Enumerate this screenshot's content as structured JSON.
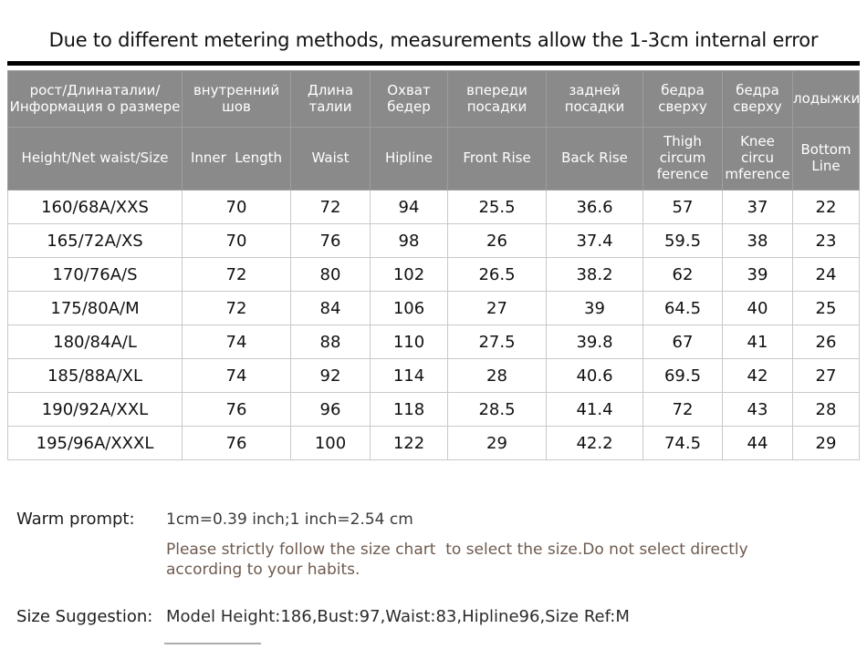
{
  "title": "Due to different metering methods, measurements allow the 1-3cm internal error",
  "chart_data": {
    "type": "table",
    "columns_ru": [
      "рост/Длинаталии/\nИнформация о размере",
      "внутренний\nшов",
      "Длина\nталии",
      "Охват\nбедер",
      "впереди\nпосадки",
      "задней\nпосадки",
      "бедра\nсверху",
      "бедра\nсверху",
      "лодыжки"
    ],
    "columns_en": [
      "Height/Net waist/Size",
      "Inner  Length",
      "Waist",
      "Hipline",
      "Front Rise",
      "Back Rise",
      "Thigh\ncircum\nference",
      "Knee\ncircu\nmference",
      "Bottom\nLine"
    ],
    "rows": [
      {
        "size": "160/68A/XXS",
        "values": [
          "70",
          "72",
          "94",
          "25.5",
          "36.6",
          "57",
          "37",
          "22"
        ]
      },
      {
        "size": "165/72A/XS",
        "values": [
          "70",
          "76",
          "98",
          "26",
          "37.4",
          "59.5",
          "38",
          "23"
        ]
      },
      {
        "size": "170/76A/S",
        "values": [
          "72",
          "80",
          "102",
          "26.5",
          "38.2",
          "62",
          "39",
          "24"
        ]
      },
      {
        "size": "175/80A/M",
        "values": [
          "72",
          "84",
          "106",
          "27",
          "39",
          "64.5",
          "40",
          "25"
        ]
      },
      {
        "size": "180/84A/L",
        "values": [
          "74",
          "88",
          "110",
          "27.5",
          "39.8",
          "67",
          "41",
          "26"
        ]
      },
      {
        "size": "185/88A/XL",
        "values": [
          "74",
          "92",
          "114",
          "28",
          "40.6",
          "69.5",
          "42",
          "27"
        ]
      },
      {
        "size": "190/92A/XXL",
        "values": [
          "76",
          "96",
          "118",
          "28.5",
          "41.4",
          "72",
          "43",
          "28"
        ]
      },
      {
        "size": "195/96A/XXXL",
        "values": [
          "76",
          "100",
          "122",
          "29",
          "42.2",
          "74.5",
          "44",
          "29"
        ]
      }
    ]
  },
  "notes": {
    "warm_prompt_label": "Warm prompt:",
    "conversion": "1cm=0.39 inch;1 inch=2.54 cm",
    "advice": "Please strictly follow the size chart  to select the size.Do not select directly\naccording to your habits.",
    "size_suggestion_label": "Size Suggestion:",
    "size_suggestion_value": "Model Height:186,Bust:97,Waist:83,Hipline96,Size Ref:M"
  },
  "colors": {
    "header_bg": "#8a8a8a",
    "header_text": "#ffffff",
    "grid_line": "#c9c9c9",
    "divider": "#000000",
    "advice_text": "#6e5a4e"
  }
}
